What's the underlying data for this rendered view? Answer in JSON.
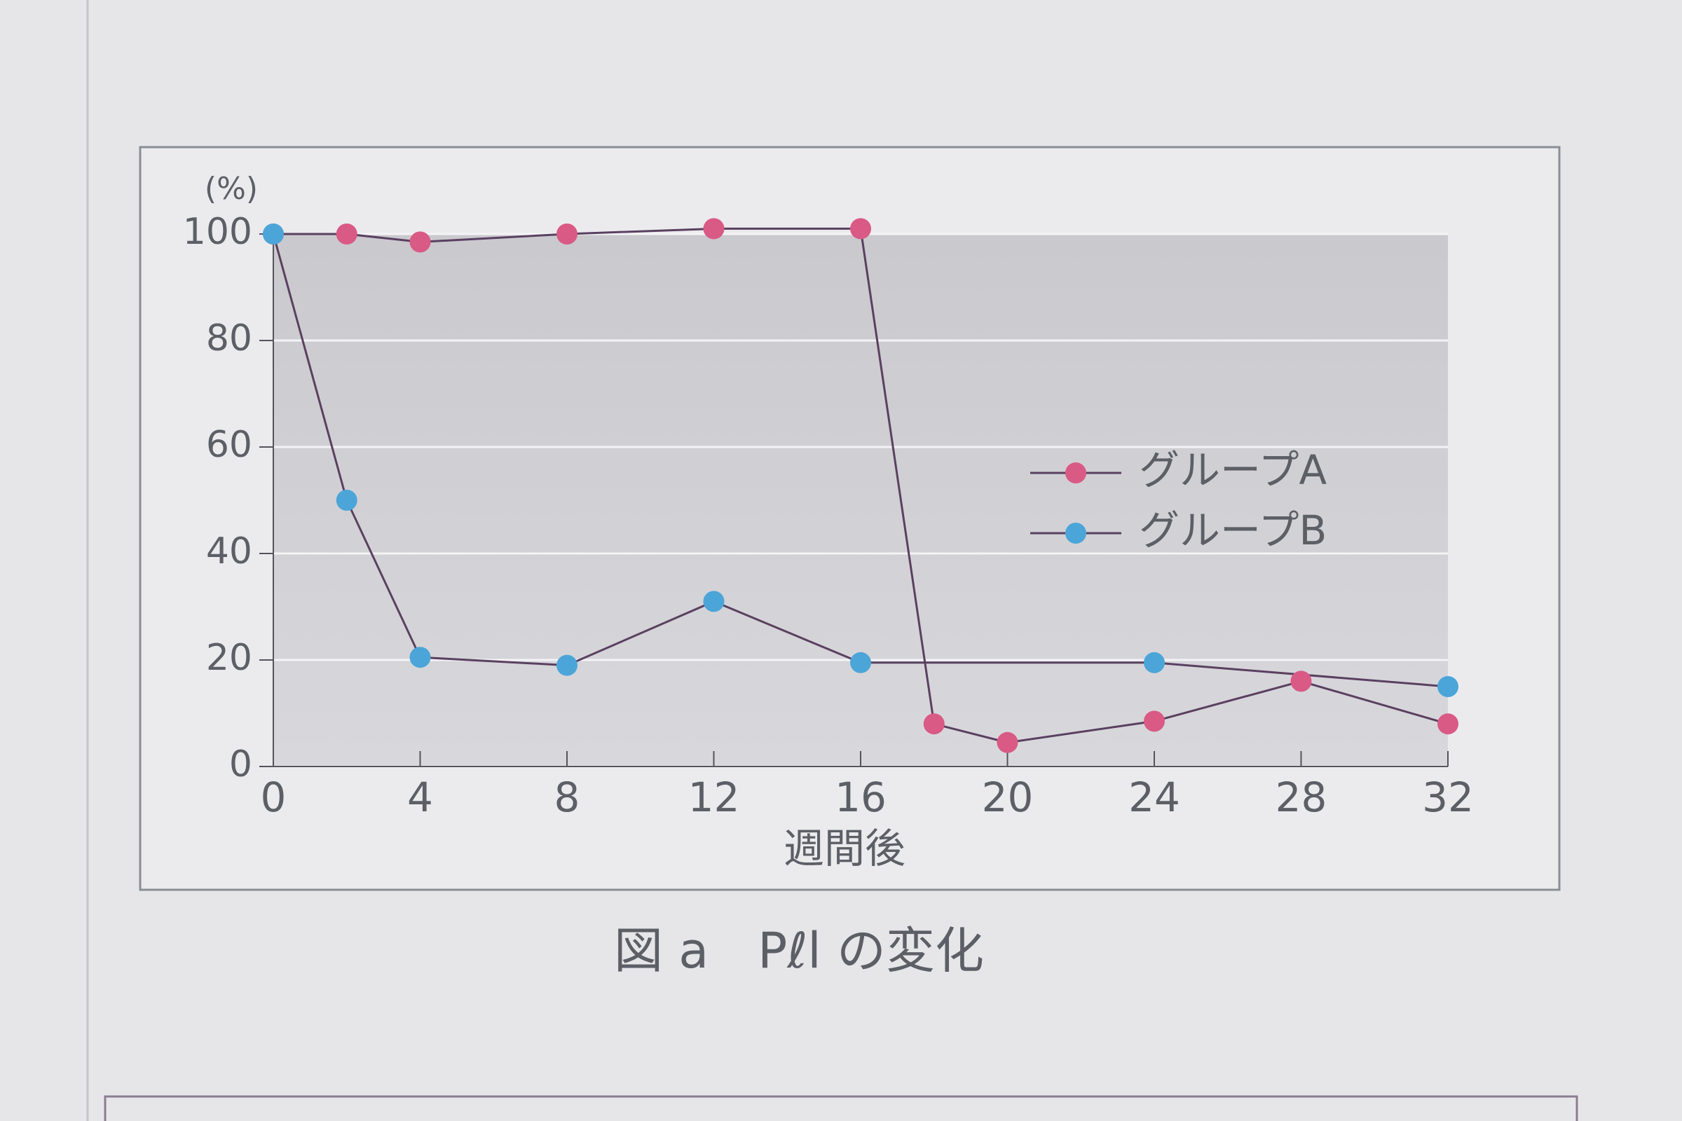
{
  "chart_data": {
    "type": "line",
    "title": "図 a　Pℓl の変化",
    "y_label": "(%)",
    "x_label": "週間後",
    "xlim": [
      0,
      32
    ],
    "xticks": [
      0,
      4,
      8,
      12,
      16,
      20,
      24,
      28,
      32
    ],
    "ylim": [
      0,
      100
    ],
    "yticks": [
      0,
      20,
      40,
      60,
      80,
      100
    ],
    "grid": true,
    "legend": "right",
    "line_color": "#5a4060",
    "series": [
      {
        "name": "グループA",
        "color": "#d95a84",
        "x": [
          0,
          2,
          4,
          8,
          12,
          16,
          18,
          20,
          24,
          28,
          32
        ],
        "values": [
          100,
          100,
          98.5,
          100,
          101,
          101,
          8,
          4.5,
          8.5,
          16,
          8
        ]
      },
      {
        "name": "グループB",
        "color": "#4ba5d9",
        "x": [
          0,
          2,
          4,
          8,
          12,
          16,
          24,
          32
        ],
        "values": [
          100,
          50,
          20.5,
          19,
          31,
          19.5,
          19.5,
          15
        ]
      }
    ]
  }
}
